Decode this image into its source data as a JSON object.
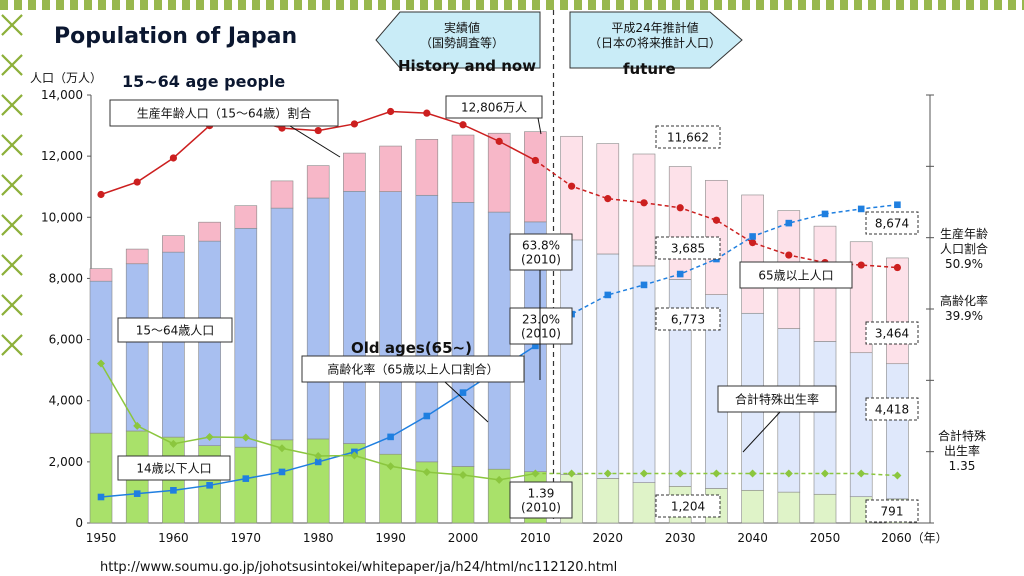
{
  "slide": {
    "title": "Population of Japan",
    "subtitle": "15~64 age people",
    "history_label": "History and now",
    "future_label": "future",
    "old_age_label": "Old ages(65~)",
    "url": "http://www.soumu.go.jp/johotsusintokei/whitepaper/ja/h24/html/nc112120.html"
  },
  "colors": {
    "under15_hist": "#a9e16a",
    "under15_future": "#dff3c8",
    "working_hist": "#a8bff0",
    "working_future": "#dfe8fb",
    "over65_hist": "#f7b7c8",
    "over65_future": "#fde1e9",
    "working_ratio_line": "#cc1f1f",
    "aging_line": "#1f7fe0",
    "fertility_line": "#8bc63e",
    "border_green": "#8db03a"
  },
  "chart_data": {
    "type": "bar",
    "stacked": true,
    "categories": [
      "1950",
      "1955",
      "1960",
      "1965",
      "1970",
      "1975",
      "1980",
      "1985",
      "1990",
      "1995",
      "2000",
      "2005",
      "2010",
      "2015",
      "2020",
      "2025",
      "2030",
      "2035",
      "2040",
      "2045",
      "2050",
      "2055",
      "2060"
    ],
    "x_tick_labels": [
      "1950",
      "1960",
      "1970",
      "1980",
      "1990",
      "2000",
      "2010",
      "2020",
      "2030",
      "2040",
      "2050",
      "2060（年）"
    ],
    "ylabel": "人口（万人）",
    "ylim": [
      0,
      14000
    ],
    "y_ticks": [
      "0",
      "2,000",
      "4,000",
      "6,000",
      "8,000",
      "10,000",
      "12,000",
      "14,000"
    ],
    "history_last_category": "2010",
    "arrow_history": "実績値\n（国勢調査等）",
    "arrow_future": "平成24年推計値\n（日本の将来推計人口）",
    "series": [
      {
        "name": "14歳以下人口",
        "values": [
          2940,
          3010,
          2810,
          2530,
          2480,
          2720,
          2750,
          2600,
          2250,
          2000,
          1850,
          1760,
          1680,
          1580,
          1460,
          1320,
          1200,
          1130,
          1070,
          1010,
          940,
          860,
          790
        ]
      },
      {
        "name": "15～64歳人口",
        "values": [
          4970,
          5470,
          6050,
          6690,
          7160,
          7580,
          7880,
          8250,
          8590,
          8720,
          8640,
          8410,
          8170,
          7680,
          7340,
          7090,
          6770,
          6340,
          5790,
          5350,
          5000,
          4710,
          4420
        ]
      },
      {
        "name": "65歳以上人口",
        "values": [
          410,
          480,
          540,
          620,
          740,
          890,
          1060,
          1250,
          1490,
          1830,
          2200,
          2580,
          2950,
          3390,
          3610,
          3660,
          3690,
          3740,
          3870,
          3860,
          3770,
          3630,
          3460
        ]
      }
    ],
    "lines": [
      {
        "name": "生産年齢人口（15～64歳）割合",
        "values": [
          59.7,
          61.2,
          64.1,
          68.0,
          68.9,
          67.7,
          67.4,
          68.2,
          69.7,
          69.5,
          68.1,
          66.1,
          63.8,
          60.7,
          59.2,
          58.7,
          58.1,
          56.6,
          53.9,
          52.4,
          51.5,
          51.2,
          50.9
        ]
      },
      {
        "name": "高齢化率（65歳以上人口割合）",
        "values": [
          4.9,
          5.3,
          5.7,
          6.3,
          7.1,
          7.9,
          9.1,
          10.3,
          12.1,
          14.6,
          17.4,
          20.2,
          23.0,
          26.8,
          29.1,
          30.3,
          31.6,
          33.4,
          36.1,
          37.7,
          38.8,
          39.4,
          39.9
        ]
      },
      {
        "name": "合計特殊出生率",
        "values": [
          3.65,
          2.37,
          2.0,
          2.14,
          2.13,
          1.91,
          1.75,
          1.76,
          1.54,
          1.42,
          1.36,
          1.26,
          1.39,
          1.39,
          1.39,
          1.39,
          1.39,
          1.39,
          1.39,
          1.39,
          1.39,
          1.39,
          1.35
        ]
      }
    ],
    "labels": {
      "total_2010": "12,806万人",
      "total_2030": "11,662",
      "total_2060": "8,674",
      "over65_2030": "3,685",
      "working_2030": "6,773",
      "under15_2030": "1,204",
      "over65_2060": "3,464",
      "working_2060": "4,418",
      "under15_2060": "791",
      "ratio_2010": "63.8%\n(2010)",
      "aging_2010": "23.0%\n(2010)",
      "fertility_2010": "1.39\n(2010)",
      "callout_working_ratio": "生産年齢人口（15～64歳）割合",
      "callout_working_pop": "15～64歳人口",
      "callout_child_pop": "14歳以下人口",
      "callout_aging": "高齢化率（65歳以上人口割合）",
      "callout_elderly": "65歳以上人口",
      "callout_fertility": "合計特殊出生率",
      "right_working_ratio": "生産年齢\n人口割合\n50.9%",
      "right_aging": "高齢化率\n39.9%",
      "right_fertility": "合計特殊\n出生率\n1.35"
    }
  }
}
